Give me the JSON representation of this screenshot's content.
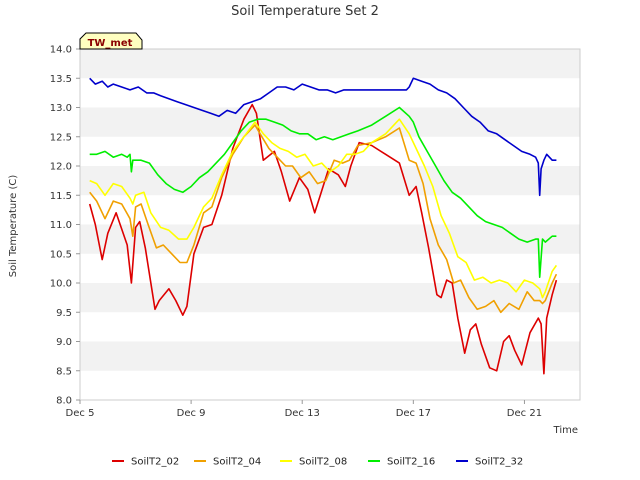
{
  "chart_data": {
    "type": "line",
    "title": "Soil Temperature Set 2",
    "xlabel": "Time",
    "ylabel": "Soil Temperature (C)",
    "station_label": "TW_met",
    "xlim": [
      0,
      18
    ],
    "ylim": [
      8.0,
      14.0
    ],
    "x_unit": "days since Dec 5",
    "x_ticks": [
      {
        "value": 0,
        "label": "Dec 5"
      },
      {
        "value": 4,
        "label": "Dec 9"
      },
      {
        "value": 8,
        "label": "Dec 13"
      },
      {
        "value": 12,
        "label": "Dec 17"
      },
      {
        "value": 16,
        "label": "Dec 21"
      }
    ],
    "y_ticks": [
      8.0,
      8.5,
      9.0,
      9.5,
      10.0,
      10.5,
      11.0,
      11.5,
      12.0,
      12.5,
      13.0,
      13.5,
      14.0
    ],
    "grid": "horizontal bands",
    "legend_position": "bottom",
    "series": [
      {
        "name": "SoilT2_02",
        "color": "#dd0000",
        "x": [
          0.35,
          0.55,
          0.8,
          1.0,
          1.3,
          1.7,
          1.85,
          2.0,
          2.15,
          2.35,
          2.7,
          2.85,
          3.2,
          3.45,
          3.7,
          3.85,
          4.1,
          4.45,
          4.75,
          5.1,
          5.5,
          5.9,
          6.2,
          6.35,
          6.6,
          7.0,
          7.25,
          7.55,
          7.9,
          8.2,
          8.45,
          8.65,
          8.95,
          9.3,
          9.55,
          9.75,
          10.05,
          10.5,
          11.0,
          11.5,
          11.85,
          12.1,
          12.3,
          12.55,
          12.85,
          13.0,
          13.2,
          13.4,
          13.6,
          13.85,
          14.05,
          14.25,
          14.45,
          14.75,
          15.0,
          15.25,
          15.45,
          15.65,
          15.9,
          16.2,
          16.5,
          16.6,
          16.7,
          16.8,
          17.0,
          17.15
        ],
        "y": [
          11.35,
          11.0,
          10.4,
          10.85,
          11.2,
          10.65,
          10.0,
          10.95,
          11.05,
          10.6,
          9.55,
          9.7,
          9.9,
          9.7,
          9.45,
          9.6,
          10.5,
          10.95,
          11.0,
          11.5,
          12.3,
          12.8,
          13.05,
          12.9,
          12.1,
          12.25,
          11.9,
          11.4,
          11.8,
          11.6,
          11.2,
          11.5,
          11.95,
          11.85,
          11.65,
          12.0,
          12.4,
          12.35,
          12.2,
          12.05,
          11.5,
          11.65,
          11.2,
          10.6,
          9.8,
          9.75,
          10.05,
          10.0,
          9.4,
          8.8,
          9.2,
          9.3,
          8.95,
          8.55,
          8.5,
          9.0,
          9.1,
          8.85,
          8.6,
          9.15,
          9.4,
          9.3,
          8.45,
          9.4,
          9.8,
          10.05
        ]
      },
      {
        "name": "SoilT2_04",
        "color": "#f0a000",
        "x": [
          0.35,
          0.6,
          0.9,
          1.2,
          1.5,
          1.8,
          1.9,
          2.0,
          2.2,
          2.45,
          2.75,
          3.0,
          3.3,
          3.6,
          3.85,
          4.1,
          4.45,
          4.75,
          5.1,
          5.5,
          5.9,
          6.3,
          6.55,
          6.8,
          7.1,
          7.4,
          7.65,
          7.95,
          8.25,
          8.55,
          8.85,
          9.15,
          9.45,
          9.7,
          10.0,
          10.5,
          11.0,
          11.5,
          11.85,
          12.1,
          12.35,
          12.6,
          12.9,
          13.2,
          13.45,
          13.7,
          14.0,
          14.3,
          14.6,
          14.9,
          15.15,
          15.45,
          15.8,
          16.1,
          16.35,
          16.55,
          16.65,
          16.75,
          17.0,
          17.15
        ],
        "y": [
          11.55,
          11.4,
          11.1,
          11.4,
          11.35,
          11.1,
          10.8,
          11.3,
          11.35,
          11.0,
          10.6,
          10.65,
          10.5,
          10.35,
          10.35,
          10.65,
          11.2,
          11.3,
          11.8,
          12.2,
          12.5,
          12.7,
          12.5,
          12.3,
          12.15,
          12.0,
          12.0,
          11.8,
          11.9,
          11.7,
          11.75,
          12.1,
          12.05,
          12.1,
          12.35,
          12.4,
          12.5,
          12.65,
          12.1,
          12.05,
          11.7,
          11.1,
          10.65,
          10.4,
          10.0,
          10.05,
          9.75,
          9.55,
          9.6,
          9.7,
          9.5,
          9.65,
          9.55,
          9.85,
          9.7,
          9.7,
          9.65,
          9.7,
          10.0,
          10.15
        ]
      },
      {
        "name": "SoilT2_08",
        "color": "#ffff00",
        "x": [
          0.35,
          0.6,
          0.9,
          1.2,
          1.5,
          1.8,
          1.9,
          2.0,
          2.3,
          2.55,
          2.9,
          3.2,
          3.55,
          3.85,
          4.1,
          4.45,
          4.75,
          5.1,
          5.5,
          5.9,
          6.3,
          6.6,
          6.9,
          7.2,
          7.5,
          7.8,
          8.1,
          8.4,
          8.7,
          9.0,
          9.3,
          9.6,
          9.9,
          10.2,
          10.5,
          11.0,
          11.5,
          11.85,
          12.1,
          12.4,
          12.7,
          13.0,
          13.3,
          13.6,
          13.9,
          14.2,
          14.5,
          14.8,
          15.1,
          15.4,
          15.7,
          16.0,
          16.3,
          16.55,
          16.65,
          16.75,
          17.0,
          17.15
        ],
        "y": [
          11.75,
          11.7,
          11.5,
          11.7,
          11.65,
          11.45,
          11.35,
          11.5,
          11.55,
          11.2,
          10.95,
          10.9,
          10.75,
          10.75,
          10.95,
          11.3,
          11.45,
          11.85,
          12.25,
          12.5,
          12.75,
          12.55,
          12.4,
          12.3,
          12.25,
          12.15,
          12.2,
          12.0,
          12.05,
          11.9,
          12.0,
          12.2,
          12.2,
          12.25,
          12.4,
          12.55,
          12.8,
          12.55,
          12.3,
          12.0,
          11.65,
          11.15,
          10.85,
          10.45,
          10.35,
          10.05,
          10.1,
          10.0,
          10.05,
          10.0,
          9.85,
          10.05,
          10.0,
          9.9,
          9.75,
          9.85,
          10.2,
          10.3
        ]
      },
      {
        "name": "SoilT2_16",
        "color": "#00ee00",
        "x": [
          0.35,
          0.6,
          0.9,
          1.2,
          1.5,
          1.7,
          1.8,
          1.85,
          1.9,
          2.2,
          2.5,
          2.8,
          3.1,
          3.4,
          3.7,
          4.0,
          4.3,
          4.6,
          4.9,
          5.2,
          5.5,
          5.8,
          6.1,
          6.4,
          6.7,
          7.0,
          7.3,
          7.6,
          7.9,
          8.2,
          8.5,
          8.8,
          9.1,
          9.4,
          9.7,
          10.0,
          10.5,
          11.0,
          11.5,
          11.85,
          12.0,
          12.2,
          12.5,
          12.8,
          13.1,
          13.4,
          13.7,
          14.0,
          14.3,
          14.6,
          14.9,
          15.2,
          15.5,
          15.8,
          16.1,
          16.4,
          16.5,
          16.55,
          16.65,
          16.75,
          17.0,
          17.15
        ],
        "y": [
          12.2,
          12.2,
          12.25,
          12.15,
          12.2,
          12.15,
          12.2,
          11.9,
          12.1,
          12.1,
          12.05,
          11.85,
          11.7,
          11.6,
          11.55,
          11.65,
          11.8,
          11.9,
          12.05,
          12.2,
          12.4,
          12.6,
          12.75,
          12.8,
          12.8,
          12.75,
          12.7,
          12.6,
          12.55,
          12.55,
          12.45,
          12.5,
          12.45,
          12.5,
          12.55,
          12.6,
          12.7,
          12.85,
          13.0,
          12.85,
          12.75,
          12.5,
          12.25,
          12.0,
          11.75,
          11.55,
          11.45,
          11.3,
          11.15,
          11.05,
          11.0,
          10.95,
          10.85,
          10.75,
          10.7,
          10.75,
          10.75,
          10.1,
          10.75,
          10.7,
          10.8,
          10.8
        ]
      },
      {
        "name": "SoilT2_32",
        "color": "#0000cc",
        "x": [
          0.35,
          0.55,
          0.8,
          1.0,
          1.2,
          1.5,
          1.8,
          2.1,
          2.4,
          2.65,
          2.9,
          3.2,
          3.5,
          3.8,
          4.1,
          4.4,
          4.7,
          5.0,
          5.3,
          5.6,
          5.9,
          6.2,
          6.5,
          6.8,
          7.1,
          7.4,
          7.7,
          8.0,
          8.3,
          8.6,
          8.9,
          9.2,
          9.5,
          9.8,
          10.0,
          10.5,
          11.0,
          11.5,
          11.75,
          11.85,
          12.0,
          12.3,
          12.6,
          12.9,
          13.2,
          13.5,
          13.8,
          14.1,
          14.4,
          14.7,
          15.0,
          15.3,
          15.6,
          15.9,
          16.2,
          16.4,
          16.5,
          16.55,
          16.6,
          16.7,
          16.8,
          17.0,
          17.15
        ],
        "y": [
          13.5,
          13.4,
          13.45,
          13.35,
          13.4,
          13.35,
          13.3,
          13.35,
          13.25,
          13.25,
          13.2,
          13.15,
          13.1,
          13.05,
          13.0,
          12.95,
          12.9,
          12.85,
          12.95,
          12.9,
          13.05,
          13.1,
          13.15,
          13.25,
          13.35,
          13.35,
          13.3,
          13.4,
          13.35,
          13.3,
          13.3,
          13.25,
          13.3,
          13.3,
          13.3,
          13.3,
          13.3,
          13.3,
          13.3,
          13.35,
          13.5,
          13.45,
          13.4,
          13.3,
          13.25,
          13.15,
          13.0,
          12.85,
          12.75,
          12.6,
          12.55,
          12.45,
          12.35,
          12.25,
          12.2,
          12.15,
          12.05,
          11.5,
          11.95,
          12.1,
          12.2,
          12.1,
          12.1
        ]
      }
    ]
  }
}
